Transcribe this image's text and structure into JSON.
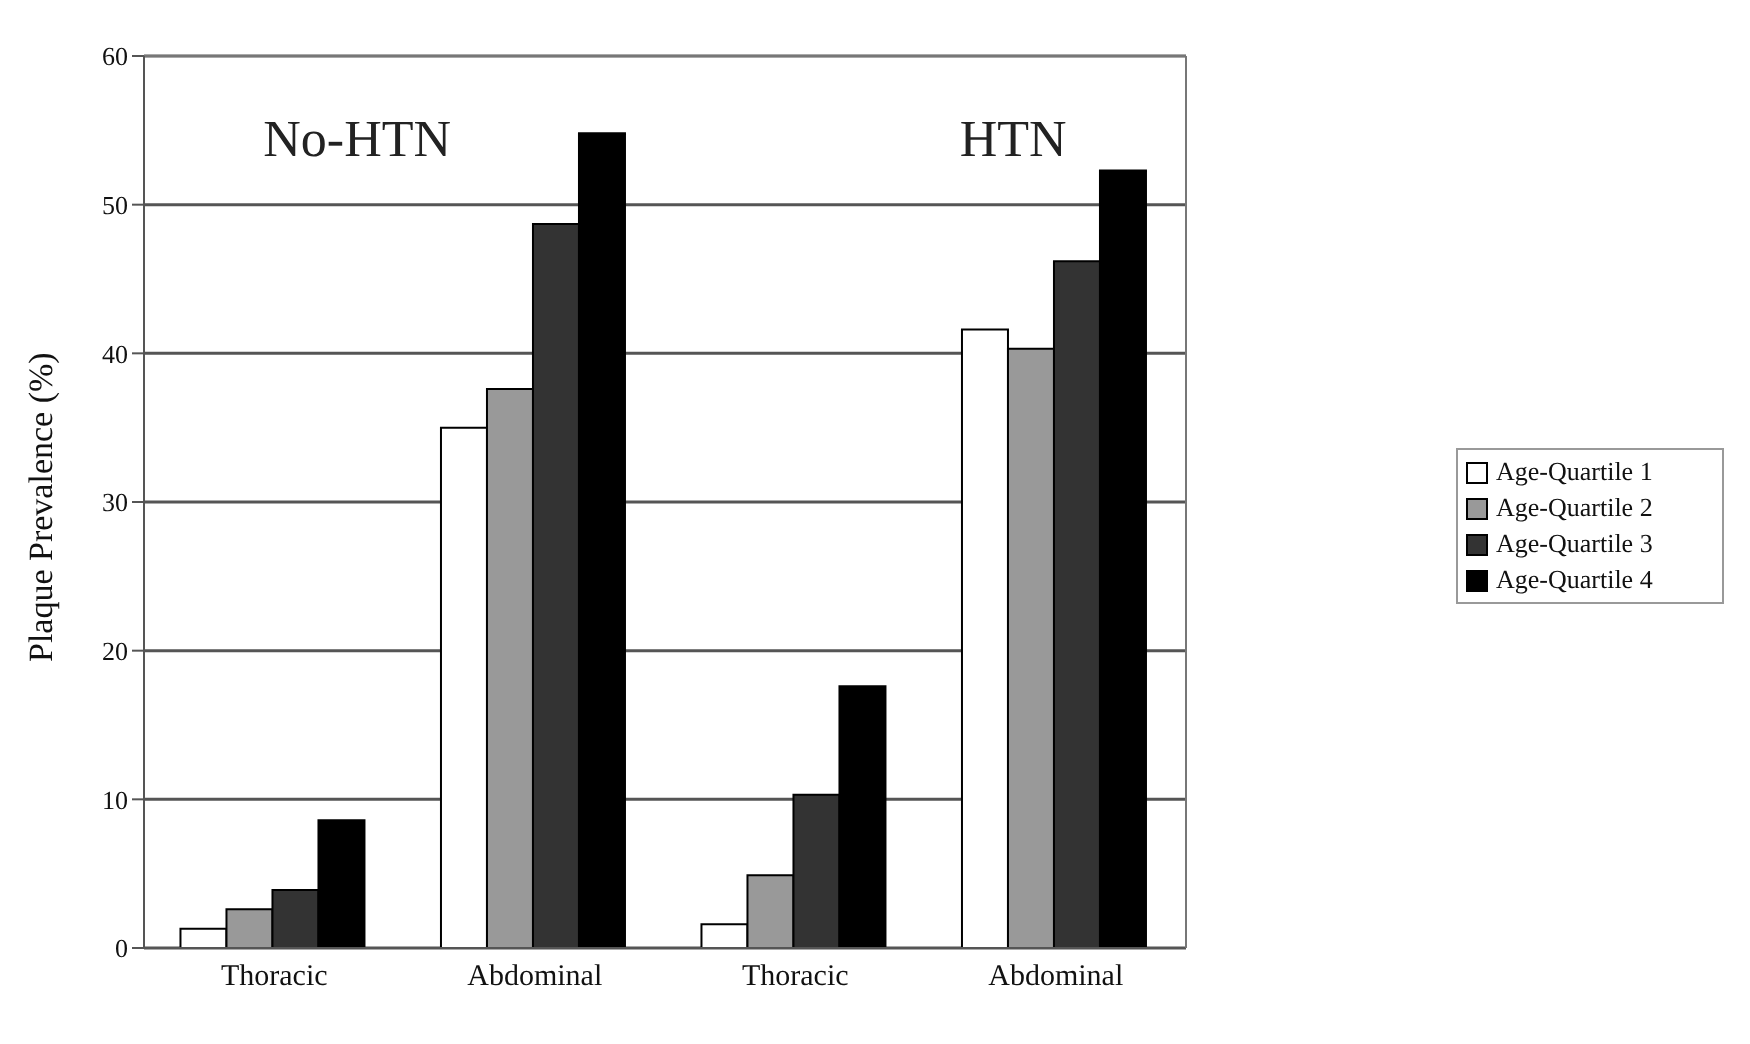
{
  "chart_data": {
    "type": "bar",
    "ylabel": "Plaque Prevalence (%)",
    "categories": [
      "Thoracic",
      "Abdominal",
      "Thoracic",
      "Abdominal"
    ],
    "series": [
      {
        "name": "Age-Quartile 1",
        "color": "#ffffff",
        "values": [
          1.3,
          35,
          1.6,
          41.6
        ]
      },
      {
        "name": "Age-Quartile 2",
        "color": "#999999",
        "values": [
          2.6,
          37.6,
          4.9,
          40.3
        ]
      },
      {
        "name": "Age-Quartile 3",
        "color": "#333333",
        "values": [
          3.9,
          48.7,
          10.3,
          46.2
        ]
      },
      {
        "name": "Age-Quartile 4",
        "color": "#000000",
        "values": [
          8.6,
          54.8,
          17.6,
          52.3
        ]
      }
    ],
    "annotations": [
      "No-HTN",
      "HTN"
    ],
    "ylim": [
      0,
      60
    ],
    "yticks": [
      0,
      10,
      20,
      30,
      40,
      50,
      60
    ],
    "grid": "y",
    "legend": "right"
  }
}
